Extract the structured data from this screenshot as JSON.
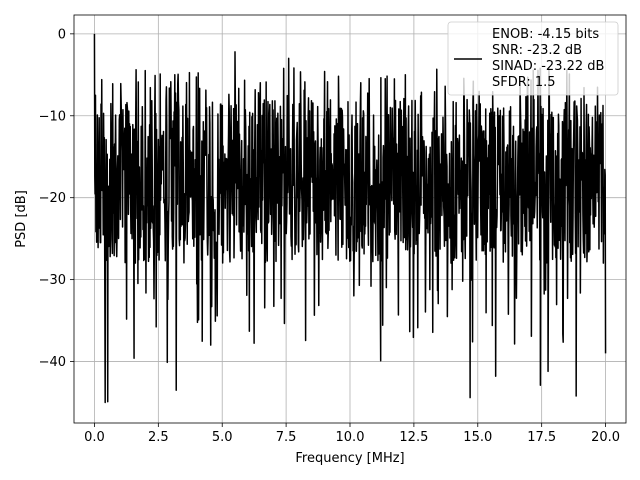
{
  "chart_data": {
    "type": "line",
    "xlabel": "Frequency [MHz]",
    "ylabel": "PSD [dB]",
    "xlim": [
      -0.8,
      20.8
    ],
    "ylim": [
      -47.5,
      2.3
    ],
    "x_ticks": [
      0.0,
      2.5,
      5.0,
      7.5,
      10.0,
      12.5,
      15.0,
      17.5,
      20.0
    ],
    "x_tick_labels": [
      "0.0",
      "2.5",
      "5.0",
      "7.5",
      "10.0",
      "12.5",
      "15.0",
      "17.5",
      "20.0"
    ],
    "y_ticks": [
      0,
      -10,
      -20,
      -30,
      -40
    ],
    "y_tick_labels": [
      "0",
      "−10",
      "−20",
      "−30",
      "−40"
    ],
    "grid": true,
    "legend_position": "top-right",
    "series": [
      {
        "name": "ENOB: -4.15 bits\nSNR: -23.2 dB\nSINAD: -23.22 dB\nSFDR: 1.5",
        "legend_lines": [
          "ENOB: -4.15 bits",
          "SNR: -23.2 dB",
          "SINAD: -23.22 dB",
          "SFDR: 1.5"
        ],
        "color": "#000000",
        "x_start": 0.0,
        "x_end": 20.0,
        "n_points": 1400,
        "typical_upper_envelope_db": -8,
        "typical_lower_envelope_db": -28,
        "notable_points": [
          {
            "x": 0.0,
            "y": 0.0
          },
          {
            "x": 0.04,
            "y": -7.5
          },
          {
            "x": 0.1,
            "y": -22.5
          },
          {
            "x": 0.42,
            "y": -45.0
          },
          {
            "x": 0.52,
            "y": -44.9
          },
          {
            "x": 1.55,
            "y": -39.6
          },
          {
            "x": 2.85,
            "y": -40.1
          },
          {
            "x": 3.2,
            "y": -43.5
          },
          {
            "x": 4.55,
            "y": -38.0
          },
          {
            "x": 5.5,
            "y": -2.2
          },
          {
            "x": 7.6,
            "y": -3.0
          },
          {
            "x": 11.2,
            "y": -39.9
          },
          {
            "x": 14.7,
            "y": -44.4
          },
          {
            "x": 15.7,
            "y": -41.8
          },
          {
            "x": 17.45,
            "y": -42.9
          },
          {
            "x": 17.75,
            "y": -41.2
          },
          {
            "x": 18.85,
            "y": -44.2
          },
          {
            "x": 20.0,
            "y": -39.0
          }
        ]
      }
    ]
  }
}
